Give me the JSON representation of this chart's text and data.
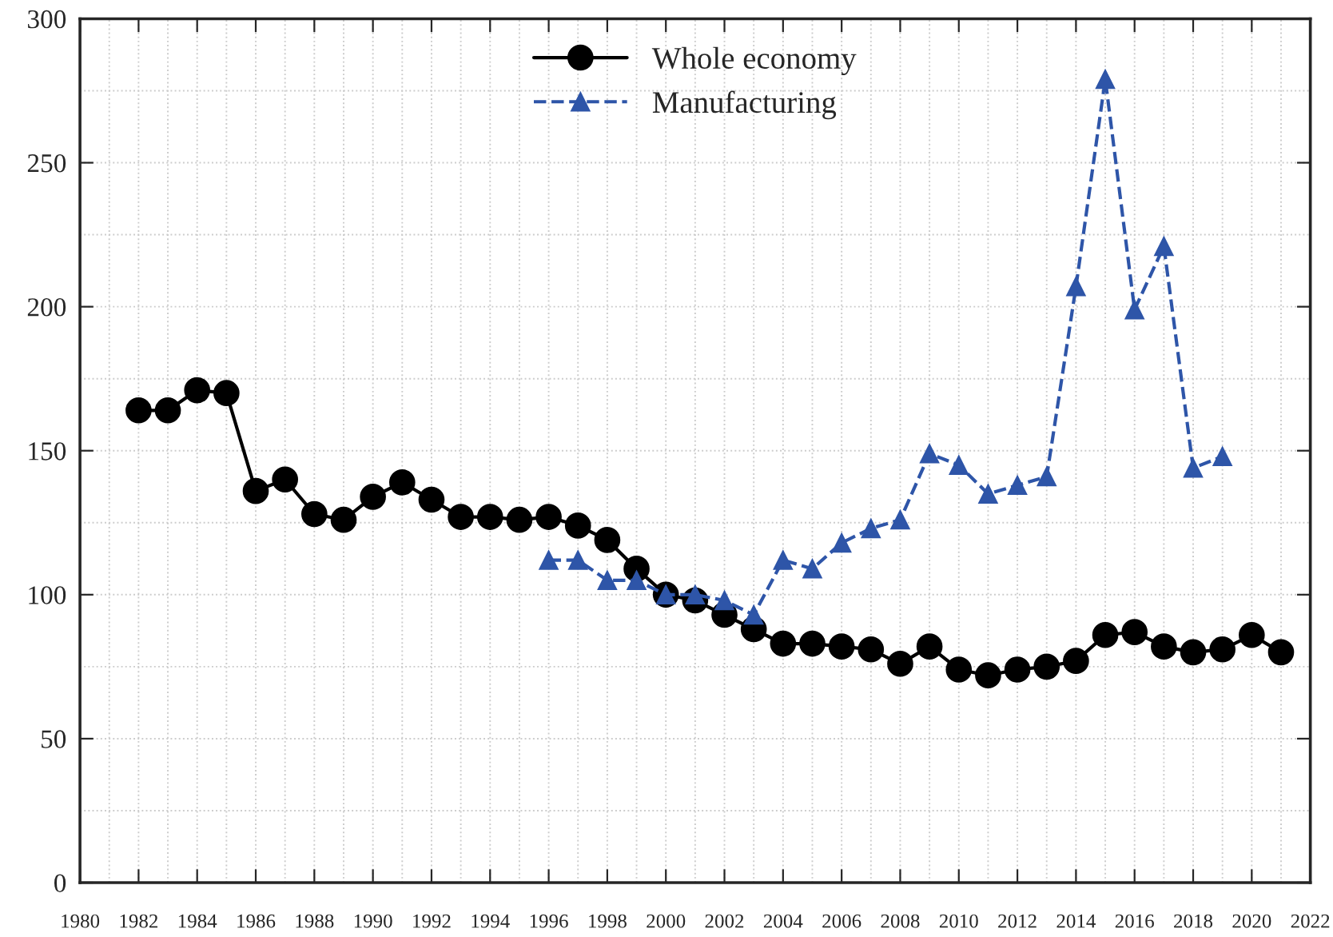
{
  "chart_data": {
    "type": "line",
    "x": [
      1982,
      1983,
      1984,
      1985,
      1986,
      1987,
      1988,
      1989,
      1990,
      1991,
      1992,
      1993,
      1994,
      1995,
      1996,
      1997,
      1998,
      1999,
      2000,
      2001,
      2002,
      2003,
      2004,
      2005,
      2006,
      2007,
      2008,
      2009,
      2010,
      2011,
      2012,
      2013,
      2014,
      2015,
      2016,
      2017,
      2018,
      2019,
      2020,
      2021
    ],
    "series": [
      {
        "name": "Whole economy",
        "color": "#000000",
        "marker": "circle",
        "line_style": "solid",
        "values": [
          164,
          164,
          171,
          170,
          136,
          140,
          128,
          126,
          134,
          139,
          133,
          127,
          127,
          126,
          127,
          124,
          119,
          109,
          100,
          98,
          93,
          88,
          83,
          83,
          82,
          81,
          76,
          82,
          74,
          72,
          74,
          75,
          77,
          86,
          87,
          82,
          80,
          81,
          86,
          80
        ]
      },
      {
        "name": "Manufacturing",
        "color": "#2e55a8",
        "marker": "triangle",
        "line_style": "dashed",
        "x": [
          1996,
          1997,
          1998,
          1999,
          2000,
          2001,
          2002,
          2003,
          2004,
          2005,
          2006,
          2007,
          2008,
          2009,
          2010,
          2011,
          2012,
          2013,
          2014,
          2015,
          2016,
          2017,
          2018,
          2019
        ],
        "values": [
          112,
          112,
          105,
          105,
          100,
          100,
          98,
          93,
          112,
          109,
          118,
          123,
          126,
          149,
          145,
          135,
          138,
          141,
          207,
          279,
          199,
          221,
          144,
          148
        ]
      }
    ],
    "xlim": [
      1980,
      2022
    ],
    "xticks": [
      1980,
      1982,
      1984,
      1986,
      1988,
      1990,
      1992,
      1994,
      1996,
      1998,
      2000,
      2002,
      2004,
      2006,
      2008,
      2010,
      2012,
      2014,
      2016,
      2018,
      2020,
      2022
    ],
    "ylim": [
      0,
      300
    ],
    "yticks": [
      0,
      50,
      100,
      150,
      200,
      250,
      300
    ],
    "grid": true,
    "legend": "top"
  }
}
